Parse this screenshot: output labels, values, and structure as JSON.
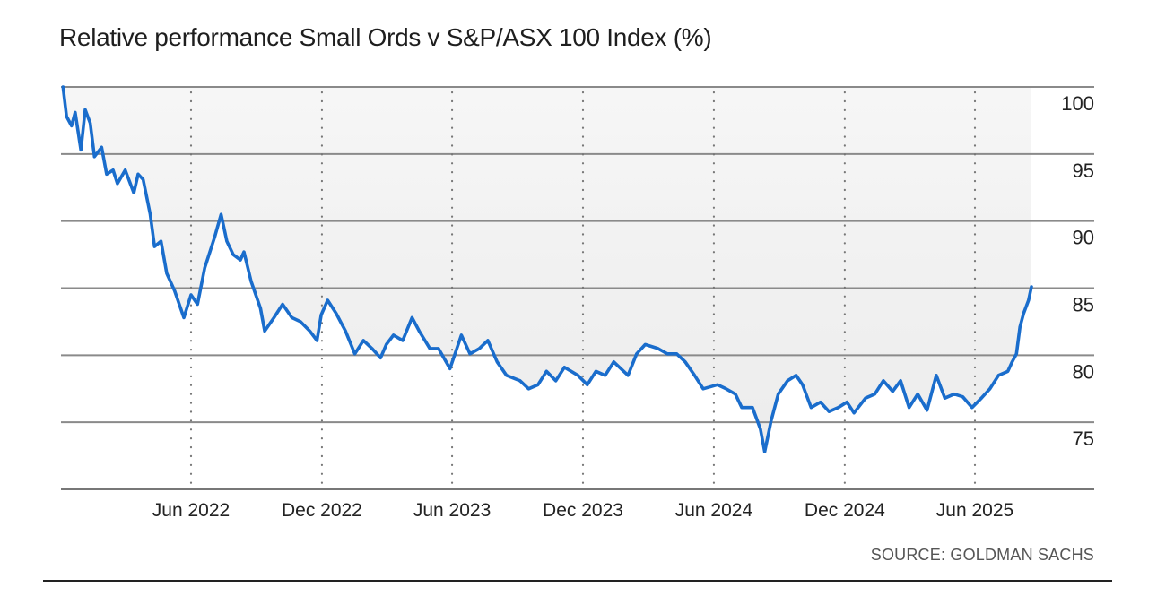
{
  "chart_data": {
    "type": "line",
    "title": "Relative performance Small Ords v S&P/ASX 100 Index (%)",
    "source": "SOURCE: GOLDMAN SACHS",
    "xlabel": "",
    "ylabel": "",
    "ylim": [
      70,
      100
    ],
    "yticks": [
      100,
      95,
      90,
      85,
      80,
      75
    ],
    "xticks": [
      {
        "label": "Jun 2022",
        "date": "2022-06-01"
      },
      {
        "label": "Dec 2022",
        "date": "2022-12-01"
      },
      {
        "label": "Jun 2023",
        "date": "2023-06-01"
      },
      {
        "label": "Dec 2023",
        "date": "2023-12-01"
      },
      {
        "label": "Jun 2024",
        "date": "2024-06-01"
      },
      {
        "label": "Dec 2024",
        "date": "2024-12-01"
      },
      {
        "label": "Jun 2025",
        "date": "2025-06-01"
      }
    ],
    "xlim": [
      "2021-12-01",
      "2025-08-20"
    ],
    "grid": "horizontal solid, vertical dotted at ticks",
    "area_fill": "shaded between line and 100",
    "colors": {
      "line": "#1a6dcc",
      "fill": "#ececec",
      "grid": "#8a8a8a"
    },
    "series": [
      {
        "x": [
          "2021-12-04",
          "2021-12-09",
          "2021-12-16",
          "2021-12-21",
          "2021-12-29",
          "2022-01-04",
          "2022-01-11",
          "2022-01-17",
          "2022-01-27",
          "2022-02-03",
          "2022-02-12",
          "2022-02-18",
          "2022-03-01",
          "2022-03-13",
          "2022-03-19",
          "2022-03-26",
          "2022-04-05",
          "2022-04-11",
          "2022-04-20",
          "2022-04-28",
          "2022-05-09",
          "2022-05-22",
          "2022-06-01",
          "2022-06-10",
          "2022-06-20",
          "2022-06-28",
          "2022-07-04",
          "2022-07-13",
          "2022-07-21",
          "2022-07-30",
          "2022-08-09",
          "2022-08-14",
          "2022-08-24",
          "2022-09-06",
          "2022-09-12",
          "2022-09-25",
          "2022-10-07",
          "2022-10-20",
          "2022-11-01",
          "2022-11-14",
          "2022-11-24",
          "2022-11-30",
          "2022-12-09",
          "2022-12-21",
          "2023-01-03",
          "2023-01-16",
          "2023-01-28",
          "2023-02-09",
          "2023-02-21",
          "2023-03-01",
          "2023-03-11",
          "2023-03-24",
          "2023-04-06",
          "2023-04-16",
          "2023-05-01",
          "2023-05-13",
          "2023-05-29",
          "2023-06-14",
          "2023-06-26",
          "2023-07-09",
          "2023-07-21",
          "2023-08-03",
          "2023-08-16",
          "2023-09-04",
          "2023-09-16",
          "2023-09-29",
          "2023-10-11",
          "2023-10-24",
          "2023-11-05",
          "2023-11-24",
          "2023-12-07",
          "2023-12-19",
          "2024-01-01",
          "2024-01-13",
          "2024-02-02",
          "2024-02-14",
          "2024-02-26",
          "2024-03-15",
          "2024-03-28",
          "2024-04-10",
          "2024-04-22",
          "2024-05-05",
          "2024-05-17",
          "2024-06-06",
          "2024-06-18",
          "2024-07-01",
          "2024-07-10",
          "2024-07-25",
          "2024-08-05",
          "2024-08-11",
          "2024-08-20",
          "2024-08-30",
          "2024-09-12",
          "2024-09-24",
          "2024-10-03",
          "2024-10-15",
          "2024-10-28",
          "2024-11-09",
          "2024-11-22",
          "2024-12-04",
          "2024-12-14",
          "2024-12-30",
          "2025-01-12",
          "2025-01-24",
          "2025-02-06",
          "2025-02-17",
          "2025-03-01",
          "2025-03-13",
          "2025-03-26",
          "2025-04-08",
          "2025-04-20",
          "2025-05-03",
          "2025-05-15",
          "2025-05-28",
          "2025-06-10",
          "2025-06-22",
          "2025-07-04",
          "2025-07-17",
          "2025-07-23",
          "2025-07-29",
          "2025-08-03",
          "2025-08-08",
          "2025-08-15",
          "2025-08-19"
        ],
        "values": [
          100,
          97.8,
          97.1,
          98.1,
          95.3,
          98.3,
          97.3,
          94.8,
          95.5,
          93.5,
          93.8,
          92.8,
          93.8,
          92.1,
          93.5,
          93.1,
          90.5,
          88.1,
          88.5,
          86.1,
          84.8,
          82.8,
          84.5,
          83.8,
          86.5,
          87.8,
          88.8,
          90.5,
          88.5,
          87.5,
          87.1,
          87.7,
          85.5,
          83.5,
          81.8,
          82.8,
          83.8,
          82.8,
          82.5,
          81.8,
          81.1,
          83.0,
          84.1,
          83.1,
          81.8,
          80.1,
          81.1,
          80.5,
          79.8,
          80.8,
          81.5,
          81.1,
          82.8,
          81.8,
          80.5,
          80.5,
          79.0,
          81.5,
          80.1,
          80.5,
          81.1,
          79.5,
          78.5,
          78.1,
          77.5,
          77.8,
          78.8,
          78.1,
          79.1,
          78.5,
          77.8,
          78.8,
          78.5,
          79.5,
          78.5,
          80.1,
          80.8,
          80.5,
          80.1,
          80.1,
          79.5,
          78.5,
          77.5,
          77.8,
          77.5,
          77.1,
          76.1,
          76.1,
          74.5,
          72.8,
          75.1,
          77.1,
          78.1,
          78.5,
          77.8,
          76.1,
          76.5,
          75.8,
          76.1,
          76.5,
          75.7,
          76.8,
          77.1,
          78.1,
          77.3,
          78.1,
          76.1,
          77.1,
          75.9,
          78.5,
          76.8,
          77.1,
          76.9,
          76.1,
          76.8,
          77.5,
          78.5,
          78.8,
          79.5,
          80.1,
          82.1,
          83.1,
          84.1,
          85.1
        ]
      }
    ]
  }
}
